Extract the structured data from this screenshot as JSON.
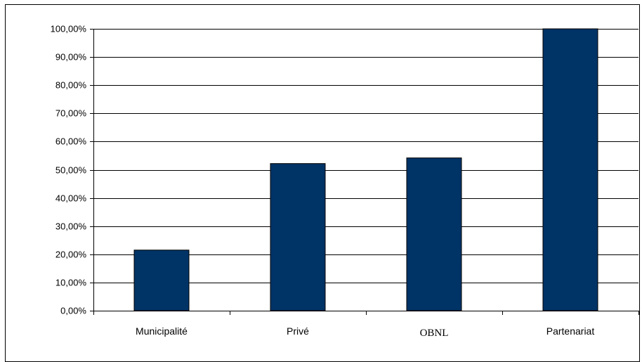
{
  "chart_data": {
    "type": "bar",
    "title": "",
    "xlabel": "",
    "ylabel": "",
    "categories": [
      "Municipalité",
      "Privé",
      "OBNL",
      "Partenariat"
    ],
    "values": [
      21.5,
      52.2,
      54.2,
      100.0
    ],
    "ylim": [
      0,
      100
    ],
    "yticks": [
      "0,00%",
      "10,00%",
      "20,00%",
      "30,00%",
      "40,00%",
      "50,00%",
      "60,00%",
      "70,00%",
      "80,00%",
      "90,00%",
      "100,00%"
    ],
    "grid": true,
    "legend": "none",
    "bar_color": "#003366"
  }
}
